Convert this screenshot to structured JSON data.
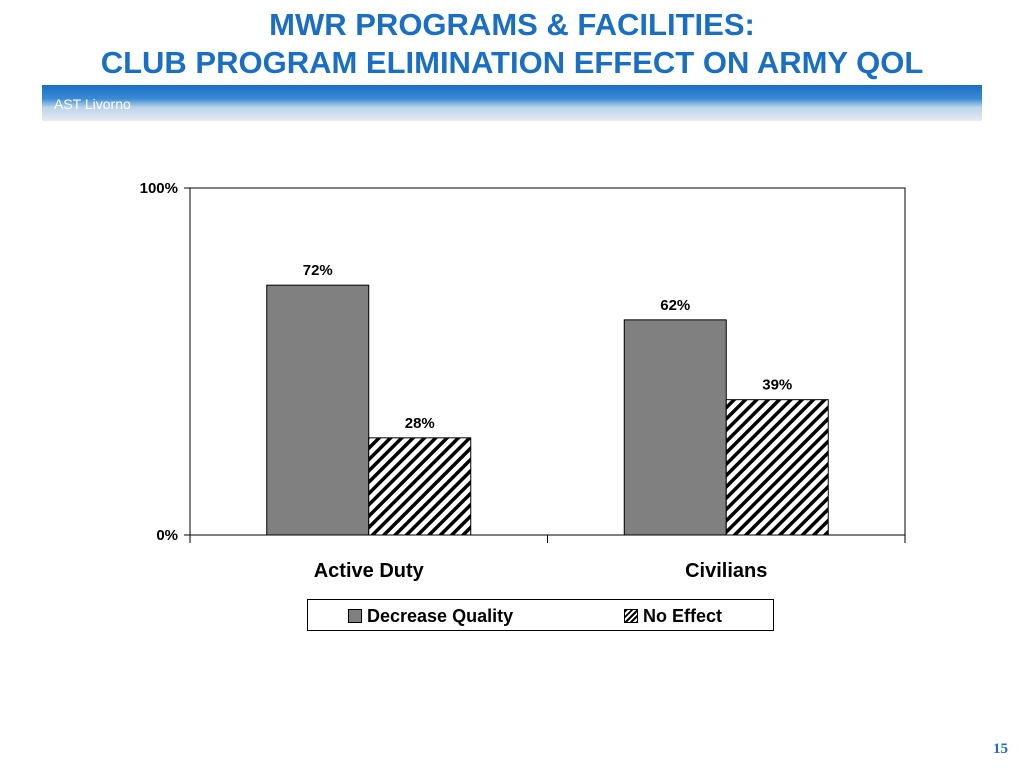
{
  "slide": {
    "title_line1": "MWR PROGRAMS & FACILITIES:",
    "title_line2": "CLUB PROGRAM ELIMINATION EFFECT ON ARMY QOL",
    "banner_text": "AST Livorno",
    "page_number": "15",
    "colors": {
      "title": "#1a6fc4",
      "banner": "#1b6ec2",
      "decrease_quality": "#808080",
      "no_effect_pattern": "black diagonal hatch"
    }
  },
  "chart_data": {
    "type": "bar",
    "categories": [
      "Active Duty",
      "Civilians"
    ],
    "series": [
      {
        "name": "Decrease Quality",
        "values": [
          72,
          62
        ],
        "labels": [
          "72%",
          "62%"
        ]
      },
      {
        "name": "No Effect",
        "values": [
          28,
          39
        ],
        "labels": [
          "28%",
          "39%"
        ]
      }
    ],
    "ylim": [
      0,
      100
    ],
    "y_ticks": [
      {
        "value": 0,
        "label": "0%"
      },
      {
        "value": 100,
        "label": "100%"
      }
    ],
    "title": "",
    "xlabel": "",
    "ylabel": "",
    "grid": false,
    "legend_position": "bottom"
  }
}
